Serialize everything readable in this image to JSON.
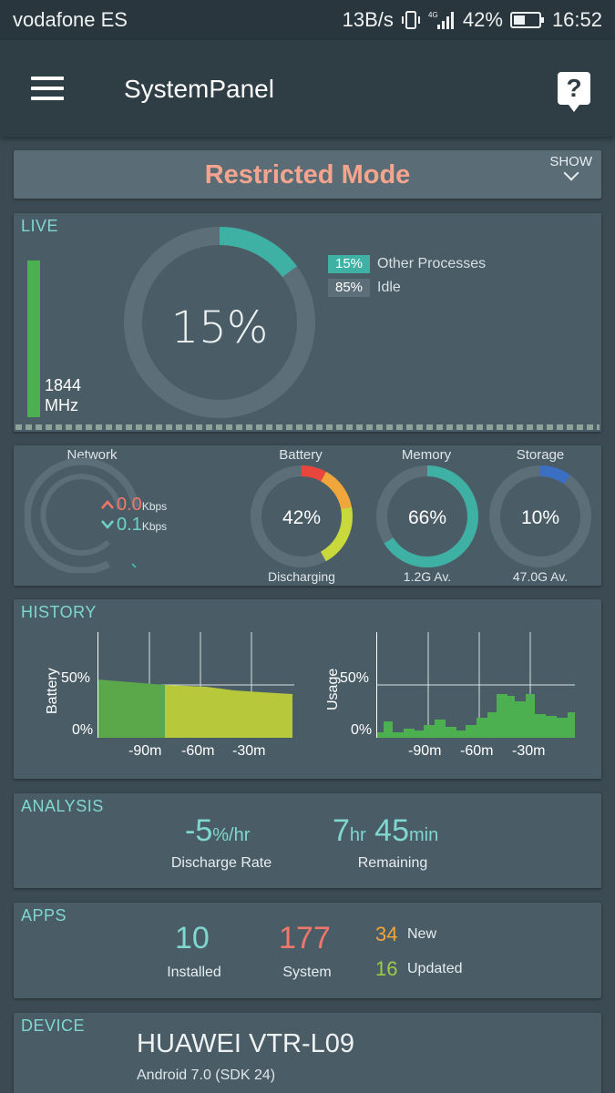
{
  "status_bar": {
    "carrier": "vodafone ES",
    "speed": "13B/s",
    "battery": "42%",
    "time": "16:52"
  },
  "app_bar": {
    "title": "SystemPanel",
    "help": "?"
  },
  "restricted": {
    "title": "Restricted Mode",
    "show": "SHOW"
  },
  "live": {
    "label": "LIVE",
    "freq_value": "1844",
    "freq_unit": "MHz",
    "center": "15%",
    "usage_fraction": 0.15,
    "legend": [
      {
        "value": "15%",
        "label": "Other Processes",
        "color": "#3fb0a4"
      },
      {
        "value": "85%",
        "label": "Idle",
        "color": "#5c6e77"
      }
    ]
  },
  "gauges": {
    "network": {
      "title": "Network",
      "up_value": "0.0",
      "down_value": "0.1",
      "unit": "Kbps"
    },
    "battery": {
      "title": "Battery",
      "value": "42%",
      "sub": "Discharging",
      "fraction": 0.42
    },
    "memory": {
      "title": "Memory",
      "value": "66%",
      "sub": "1.2G Av.",
      "fraction": 0.66
    },
    "storage": {
      "title": "Storage",
      "value": "10%",
      "sub": "47.0G Av.",
      "fraction": 0.1
    }
  },
  "history": {
    "label": "HISTORY",
    "battery_axis": "Battery",
    "usage_axis": "Usage",
    "y_ticks": [
      "50%",
      "0%"
    ],
    "x_ticks": [
      "-90m",
      "-60m",
      "-30m"
    ]
  },
  "analysis": {
    "label": "ANALYSIS",
    "rate_value": "-5",
    "rate_unit": "%/hr",
    "rate_caption": "Discharge Rate",
    "hours": "7",
    "hours_unit": "hr",
    "minutes": "45",
    "minutes_unit": "min",
    "remaining_caption": "Remaining"
  },
  "apps": {
    "label": "APPS",
    "installed_value": "10",
    "installed_caption": "Installed",
    "system_value": "177",
    "system_caption": "System",
    "new_value": "34",
    "new_caption": "New",
    "updated_value": "16",
    "updated_caption": "Updated"
  },
  "device": {
    "label": "DEVICE",
    "model": "HUAWEI VTR-L09",
    "android": "Android 7.0 (SDK 24)"
  },
  "colors": {
    "teal": "#3fb0a4",
    "accent_text": "#7fd7cf",
    "red": "#f1776c",
    "orange": "#f0a63a",
    "lime": "#c9d83a",
    "green": "#4caf50",
    "blue": "#3b6fc4"
  }
}
